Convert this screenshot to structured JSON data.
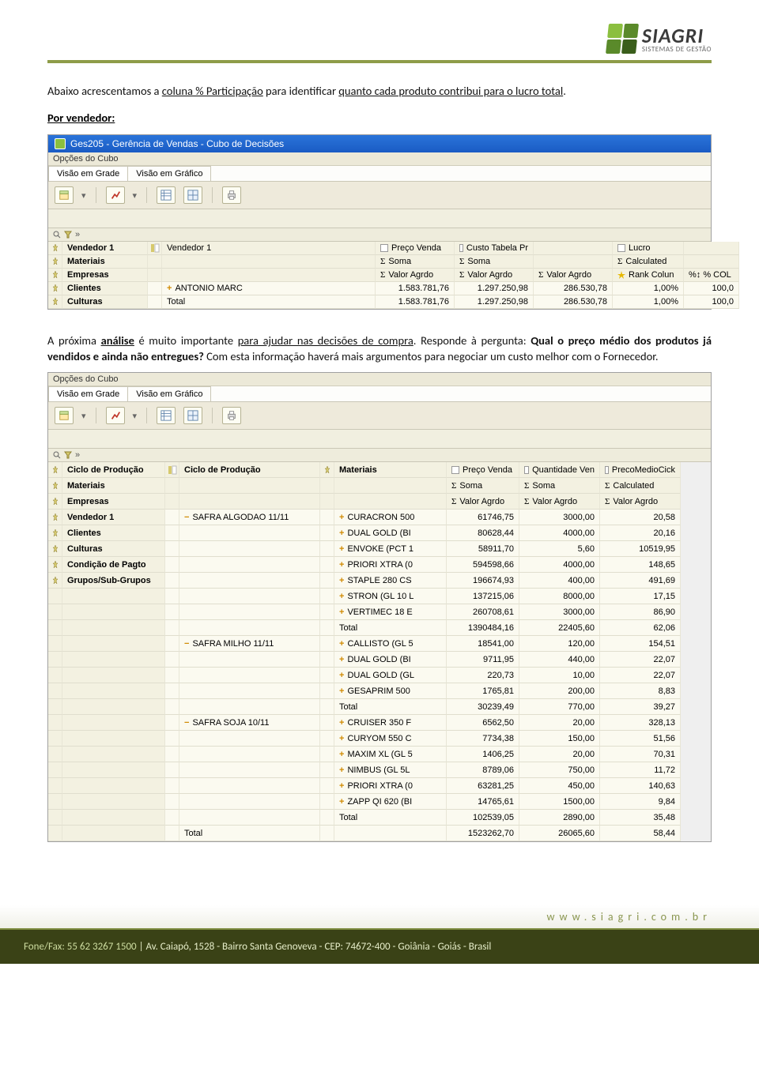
{
  "header": {
    "logo_name": "SIAGRI",
    "logo_sub": "SISTEMAS DE GESTÃO",
    "rule_color": "#8e9c48"
  },
  "text": {
    "p1_a": "Abaixo acrescentamos a ",
    "p1_u1": "coluna % Participação",
    "p1_b": " para identificar ",
    "p1_u2": "quanto cada produto contribui para o lucro total",
    "p1_c": ".",
    "label1": "Por vendedor:",
    "p2_a": "A próxima ",
    "p2_bu": "análise",
    "p2_b": " é muito importante ",
    "p2_u": "para ajudar nas decisões de compra",
    "p2_c": ". Responde à pergunta: ",
    "p2_bold": "Qual o preço médio dos produtos já vendidos e ainda não entregues?",
    "p2_d": " Com esta informação haverá mais argumentos para negociar um custo melhor com o Fornecedor."
  },
  "app1": {
    "title": "Ges205 - Gerência de Vendas - Cubo de Decisões",
    "menu": "Opções do Cubo",
    "tabs": [
      "Visão em Grade",
      "Visão em Gráfico"
    ],
    "sidebar": [
      "Vendedor 1",
      "Materiais",
      "Empresas",
      "Clientes",
      "Culturas"
    ],
    "topdim_label": "Vendedor 1",
    "col_preco": "Preço Venda",
    "col_custo": "Custo Tabela Pr",
    "col_lucro": "Lucro",
    "soma": "Soma",
    "calculated": "Calculated",
    "valoragrdo": "Valor Agrdo",
    "rank": "Rank Colun",
    "pctcol": "% COL",
    "rows": [
      {
        "label": "ANTONIO  MARC",
        "preco": "1.583.781,76",
        "custo": "1.297.250,98",
        "lucro": "286.530,78",
        "rank": "1,00%",
        "pct": "100,0",
        "plus": true
      },
      {
        "label": "Total",
        "preco": "1.583.781,76",
        "custo": "1.297.250,98",
        "lucro": "286.530,78",
        "rank": "1,00%",
        "pct": "100,0",
        "plus": false
      }
    ]
  },
  "app2": {
    "menu": "Opções do Cubo",
    "tabs": [
      "Visão em Grade",
      "Visão em Gráfico"
    ],
    "sidebar": [
      "Ciclo de Produção",
      "Materiais",
      "Empresas",
      "Vendedor 1",
      "Clientes",
      "Culturas",
      "Condição de Pagto",
      "Grupos/Sub-Grupos"
    ],
    "dim1": "Ciclo de Produção",
    "dim2": "Materiais",
    "col_preco": "Preço Venda",
    "col_qtd": "Quantidade Ven",
    "col_pm": "PrecoMedioCick",
    "soma": "Soma",
    "calculated": "Calculated",
    "valoragrdo": "Valor Agrdo",
    "groups": [
      {
        "label": "SAFRA ALGODAO 11/11",
        "items": [
          {
            "m": "CURACRON 500",
            "p": "61746,75",
            "q": "3000,00",
            "pm": "20,58"
          },
          {
            "m": "DUAL GOLD (BI",
            "p": "80628,44",
            "q": "4000,00",
            "pm": "20,16"
          },
          {
            "m": "ENVOKE (PCT 1",
            "p": "58911,70",
            "q": "5,60",
            "pm": "10519,95"
          },
          {
            "m": "PRIORI XTRA (0",
            "p": "594598,66",
            "q": "4000,00",
            "pm": "148,65"
          },
          {
            "m": "STAPLE 280 CS",
            "p": "196674,93",
            "q": "400,00",
            "pm": "491,69"
          },
          {
            "m": "STRON (GL 10 L",
            "p": "137215,06",
            "q": "8000,00",
            "pm": "17,15"
          },
          {
            "m": "VERTIMEC 18 E",
            "p": "260708,61",
            "q": "3000,00",
            "pm": "86,90"
          }
        ],
        "total": {
          "p": "1390484,16",
          "q": "22405,60",
          "pm": "62,06"
        }
      },
      {
        "label": "SAFRA MILHO 11/11",
        "items": [
          {
            "m": "CALLISTO (GL 5",
            "p": "18541,00",
            "q": "120,00",
            "pm": "154,51"
          },
          {
            "m": "DUAL GOLD (BI",
            "p": "9711,95",
            "q": "440,00",
            "pm": "22,07"
          },
          {
            "m": "DUAL GOLD (GL",
            "p": "220,73",
            "q": "10,00",
            "pm": "22,07"
          },
          {
            "m": "GESAPRIM 500",
            "p": "1765,81",
            "q": "200,00",
            "pm": "8,83"
          }
        ],
        "total": {
          "p": "30239,49",
          "q": "770,00",
          "pm": "39,27"
        }
      },
      {
        "label": "SAFRA SOJA 10/11",
        "items": [
          {
            "m": "CRUISER 350 F",
            "p": "6562,50",
            "q": "20,00",
            "pm": "328,13"
          },
          {
            "m": "CURYOM 550 C",
            "p": "7734,38",
            "q": "150,00",
            "pm": "51,56"
          },
          {
            "m": "MAXIM XL (GL 5",
            "p": "1406,25",
            "q": "20,00",
            "pm": "70,31"
          },
          {
            "m": "NIMBUS (GL 5L",
            "p": "8789,06",
            "q": "750,00",
            "pm": "11,72"
          },
          {
            "m": "PRIORI XTRA (0",
            "p": "63281,25",
            "q": "450,00",
            "pm": "140,63"
          },
          {
            "m": "ZAPP QI 620 (BI",
            "p": "14765,61",
            "q": "1500,00",
            "pm": "9,84"
          }
        ],
        "total": {
          "p": "102539,05",
          "q": "2890,00",
          "pm": "35,48"
        }
      }
    ],
    "grand_total": {
      "label": "Total",
      "p": "1523262,70",
      "q": "26065,60",
      "pm": "58,44"
    }
  },
  "footer": {
    "web": "www.siagri.com.br",
    "addr_ph": "Fone/Fax: 55 62 3267 1500",
    "addr_rest": " | Av. Caiapó, 1528 - Bairro Santa Genoveva - CEP: 74672-400 - Goiânia - Goiás - Brasil"
  }
}
